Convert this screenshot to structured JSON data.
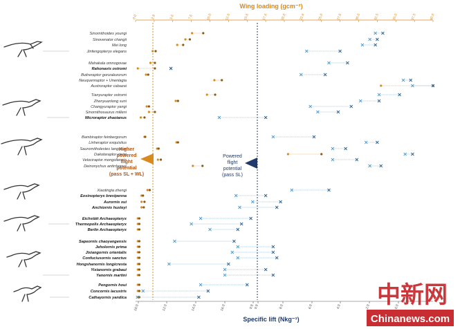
{
  "chart_data": {
    "type": "scatter",
    "title": "",
    "x_top": {
      "label": "Wing loading (gcm⁻²)",
      "ticks": [
        "0.0",
        "2.8",
        "5.6",
        "7.6",
        "10.0",
        "12.6",
        "15.6",
        "17.6",
        "20.0",
        "22.6",
        "25.0",
        "27.6",
        "30.0",
        "32.5",
        "35.0",
        "37.5",
        "40.0"
      ]
    },
    "x_bottom": {
      "label": "Specific lift (Nkg⁻¹)",
      "ticks": [
        "10.0",
        "12.0",
        "14.0",
        "16.0",
        "9.8",
        "9.8",
        "8.0",
        "6.0",
        "4.0",
        "2.0",
        "0.0"
      ]
    },
    "thresholds": {
      "wing_loading": 2.8,
      "specific_lift": 9.8
    },
    "annotations": {
      "wing_loading_potential": [
        "Higher",
        "powered",
        "flight",
        "potential",
        "(pass SL + WL)"
      ],
      "specific_lift_potential": [
        "Powered",
        "flight",
        "potential",
        "(pass SL)"
      ]
    },
    "taxa": [
      {
        "name": "Sinornithoides youngi",
        "bold": false,
        "wl": [
          7.6,
          9.1
        ],
        "sl": [
          3.1,
          2.7
        ]
      },
      {
        "name": "Sinovenator changii",
        "bold": false,
        "wl": [
          6.7,
          7.3
        ],
        "sl": [
          3.4,
          3.0
        ]
      },
      {
        "name": "Mei long",
        "bold": false,
        "wl": [
          5.6,
          6.4
        ],
        "sl": [
          3.8,
          3.1
        ]
      },
      {
        "name": "Jinfengopteryx elegans",
        "bold": false,
        "wl": [
          2.3,
          2.7
        ],
        "sl": [
          6.8,
          5.0
        ]
      },
      {
        "name": "Mahakala omnogovae",
        "bold": false,
        "wl": [
          2.0,
          2.6
        ],
        "sl": [
          5.6,
          4.6
        ]
      },
      {
        "name": "Rahonavis ostromi",
        "bold": true,
        "wl": [
          0.3,
          2.6
        ],
        "sl": [
          14.1,
          14.1
        ]
      },
      {
        "name": "Buitreraptor gonzalezorum",
        "bold": false,
        "wl": [
          1.4,
          1.7
        ],
        "sl": [
          7.1,
          5.8
        ]
      },
      {
        "name": "Neuquenraptor + Unenlagia",
        "bold": false,
        "wl": [
          10.6,
          11.6
        ],
        "sl": [
          1.6,
          1.2
        ]
      },
      {
        "name": "Austroraptor cabazai",
        "bold": false,
        "wl": [
          33.0,
          40.0
        ],
        "sl": [
          1.1,
          0.0
        ]
      },
      {
        "name": "Tianyuraptor ostromi",
        "bold": false,
        "wl": [
          9.6,
          10.7
        ],
        "sl": [
          2.9,
          1.8
        ]
      },
      {
        "name": "Zhenyuanlong suni",
        "bold": false,
        "wl": [
          5.4,
          5.7
        ],
        "sl": [
          3.9,
          2.9
        ]
      },
      {
        "name": "Changyuraptor yangi",
        "bold": false,
        "wl": [
          1.5,
          1.8
        ],
        "sl": [
          6.6,
          4.4
        ]
      },
      {
        "name": "Sinornithosaurus milleni",
        "bold": false,
        "wl": [
          1.8,
          2.6
        ],
        "sl": [
          6.2,
          5.1
        ]
      },
      {
        "name": "Microraptor zhaoianus",
        "bold": true,
        "wl": [
          0.7,
          1.2
        ],
        "sl": [
          11.5,
          9.0
        ]
      },
      {
        "name": "Bambiraptor feinbergorum",
        "bold": false,
        "wl": [
          1.2,
          1.3
        ],
        "sl": [
          8.6,
          6.4
        ]
      },
      {
        "name": "Linheraptor exquisitus",
        "bold": false,
        "wl": [
          5.5,
          5.7
        ],
        "sl": [
          3.6,
          3.0
        ]
      },
      {
        "name": "Saurornitholestes langstoni",
        "bold": false,
        "wl": [
          2.9,
          3.1
        ],
        "sl": [
          5.4,
          4.7
        ]
      },
      {
        "name": "Dakotaraptor steini",
        "bold": false,
        "wl": [
          20.5,
          25.0
        ],
        "sl": [
          1.5,
          1.1
        ]
      },
      {
        "name": "Velociraptor mongoliensis",
        "bold": false,
        "wl": [
          3.0,
          3.4
        ],
        "sl": [
          5.4,
          4.1
        ]
      },
      {
        "name": "Deinonychus antirrhopus",
        "bold": false,
        "wl": [
          7.7,
          9.0
        ],
        "sl": [
          3.4,
          2.8
        ]
      },
      {
        "name": "Xiaotingia zhengi",
        "bold": false,
        "wl": [
          1.6,
          1.9
        ],
        "sl": [
          7.6,
          5.6
        ]
      },
      {
        "name": "Eosinopteryx brevipenna",
        "bold": true,
        "wl": [
          0.8,
          1.0
        ],
        "sl": [
          10.6,
          9.0
        ]
      },
      {
        "name": "Aurornis xui",
        "bold": true,
        "wl": [
          0.8,
          1.2
        ],
        "sl": [
          9.7,
          8.2
        ]
      },
      {
        "name": "Anchiornis huxleyi",
        "bold": true,
        "wl": [
          0.8,
          1.1
        ],
        "sl": [
          10.4,
          8.4
        ]
      },
      {
        "name": "Eichstätt Archaeopteryx",
        "bold": true,
        "wl": [
          0.3,
          0.5
        ],
        "sl": [
          12.5,
          9.8
        ]
      },
      {
        "name": "Thermopolis Archaeopteryx",
        "bold": true,
        "wl": [
          0.3,
          0.5
        ],
        "sl": [
          13.0,
          10.3
        ]
      },
      {
        "name": "Berlin Archaeopteryx",
        "bold": true,
        "wl": [
          0.3,
          0.5
        ],
        "sl": [
          12.0,
          10.5
        ]
      },
      {
        "name": "Sapeornis chaoyangensis",
        "bold": true,
        "wl": [
          0.3,
          0.5
        ],
        "sl": [
          13.9,
          10.7
        ]
      },
      {
        "name": "Jeholornis prima",
        "bold": true,
        "wl": [
          0.3,
          0.5
        ],
        "sl": [
          10.5,
          8.6
        ]
      },
      {
        "name": "Jixiangornis orientalis",
        "bold": true,
        "wl": [
          0.3,
          0.5
        ],
        "sl": [
          10.8,
          8.6
        ]
      },
      {
        "name": "Confuciusornis sanctus",
        "bold": true,
        "wl": [
          0.3,
          0.5
        ],
        "sl": [
          10.5,
          8.4
        ]
      },
      {
        "name": "Hongshanornis longicresta",
        "bold": true,
        "wl": [
          0.3,
          0.5
        ],
        "sl": [
          14.2,
          11.0
        ]
      },
      {
        "name": "Yixianornis grabaui",
        "bold": true,
        "wl": [
          0.3,
          0.5
        ],
        "sl": [
          11.2,
          9.0
        ]
      },
      {
        "name": "Yanornis martini",
        "bold": true,
        "wl": [
          0.3,
          0.5
        ],
        "sl": [
          11.2,
          8.6
        ]
      },
      {
        "name": "Pengornis houi",
        "bold": true,
        "wl": [
          0.3,
          0.5
        ],
        "sl": [
          12.5,
          10.0
        ]
      },
      {
        "name": "Concornis lacustris",
        "bold": true,
        "wl": [
          0.3,
          0.5
        ],
        "sl": [
          15.6,
          12.1
        ]
      },
      {
        "name": "Cathayornis yandica",
        "bold": true,
        "wl": [
          0.3,
          0.5
        ],
        "sl": [
          15.9,
          12.6
        ]
      }
    ],
    "grid": false,
    "legend": "none"
  },
  "watermark": {
    "cn": "中新网",
    "en": "Chinanews.com"
  },
  "colors": {
    "orange": "#d98a1f",
    "blue": "#4a9bd0",
    "navy": "#1f3a6b",
    "red": "#c2161b"
  }
}
